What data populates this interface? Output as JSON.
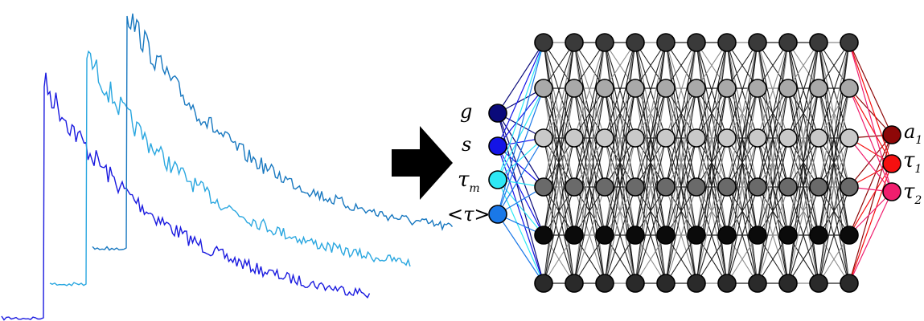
{
  "inputs": [
    {
      "label": "g",
      "sub": "",
      "color": "#0a0a7a"
    },
    {
      "label": "s",
      "sub": "",
      "color": "#1414e6"
    },
    {
      "label": "τ",
      "sub": "m",
      "color": "#2ee8f5"
    },
    {
      "label": "<τ>",
      "sub": "",
      "color": "#1a78e8"
    }
  ],
  "outputs": [
    {
      "label": "a",
      "sub": "1",
      "color": "#8e0808"
    },
    {
      "label": "τ",
      "sub": "1",
      "color": "#f51010"
    },
    {
      "label": "τ",
      "sub": "2",
      "color": "#f01e6e"
    }
  ],
  "network": {
    "hidden_layers": 11,
    "row_colors": [
      "#3a3a3a",
      "#a9a9a9",
      "#c9c9c9",
      "#6a6a6a",
      "#0b0b0b",
      "#2a2a2a"
    ]
  },
  "decays": [
    {
      "name": "decay-curve-dark",
      "color": "#1a1adf"
    },
    {
      "name": "decay-curve-light",
      "color": "#2aa7e0"
    },
    {
      "name": "decay-curve-mid",
      "color": "#1878c0"
    }
  ],
  "arrow_color": "#000000"
}
